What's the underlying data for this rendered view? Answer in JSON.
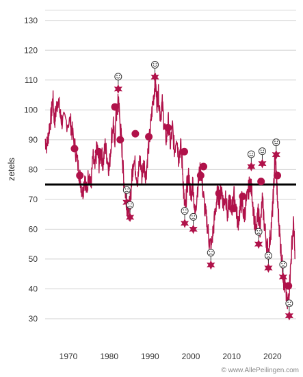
{
  "chart_data": {
    "type": "line",
    "ylabel": "zetels",
    "xlabel": "",
    "title": "",
    "xlim": [
      1964.3,
      2025.8
    ],
    "ylim": [
      27,
      135
    ],
    "yticks": [
      30,
      40,
      50,
      60,
      70,
      80,
      90,
      100,
      110,
      120,
      130
    ],
    "xticks": [
      1970,
      1980,
      1990,
      2000,
      2010,
      2020
    ],
    "grid": true,
    "reference_line": 75,
    "series_color": "#b0124a",
    "reference_color": "#000000",
    "poll_series": [
      [
        1964.3,
        90
      ],
      [
        1964.8,
        88
      ],
      [
        1965.3,
        94
      ],
      [
        1965.8,
        98
      ],
      [
        1966.2,
        104
      ],
      [
        1966.6,
        96
      ],
      [
        1967.0,
        100
      ],
      [
        1967.5,
        104
      ],
      [
        1968.0,
        98
      ],
      [
        1968.5,
        96
      ],
      [
        1969.5,
        96
      ],
      [
        1970.5,
        96
      ],
      [
        1971.0,
        92
      ],
      [
        1971.8,
        86
      ],
      [
        1972.5,
        80
      ],
      [
        1973.0,
        76
      ],
      [
        1973.5,
        72
      ],
      [
        1974.0,
        78
      ],
      [
        1974.5,
        72
      ],
      [
        1975.0,
        80
      ],
      [
        1975.5,
        74
      ],
      [
        1976.0,
        84
      ],
      [
        1976.5,
        80
      ],
      [
        1977.0,
        88
      ],
      [
        1977.5,
        82
      ],
      [
        1978.0,
        86
      ],
      [
        1978.5,
        82
      ],
      [
        1979.0,
        88
      ],
      [
        1979.5,
        84
      ],
      [
        1980.0,
        80
      ],
      [
        1980.5,
        90
      ],
      [
        1981.0,
        96
      ],
      [
        1981.3,
        88
      ],
      [
        1981.7,
        98
      ],
      [
        1982.0,
        100
      ],
      [
        1982.3,
        104
      ],
      [
        1982.6,
        96
      ],
      [
        1983.0,
        90
      ],
      [
        1983.3,
        82
      ],
      [
        1983.6,
        76
      ],
      [
        1984.0,
        72
      ],
      [
        1984.4,
        68
      ],
      [
        1984.8,
        66
      ],
      [
        1985.2,
        70
      ],
      [
        1985.6,
        78
      ],
      [
        1986.0,
        84
      ],
      [
        1986.5,
        80
      ],
      [
        1987.0,
        76
      ],
      [
        1987.5,
        84
      ],
      [
        1988.0,
        78
      ],
      [
        1988.5,
        82
      ],
      [
        1989.0,
        78
      ],
      [
        1989.5,
        86
      ],
      [
        1990.0,
        92
      ],
      [
        1990.5,
        100
      ],
      [
        1991.0,
        106
      ],
      [
        1991.3,
        110
      ],
      [
        1991.7,
        102
      ],
      [
        1992.0,
        106
      ],
      [
        1992.5,
        98
      ],
      [
        1993.0,
        102
      ],
      [
        1993.5,
        94
      ],
      [
        1994.0,
        90
      ],
      [
        1994.5,
        96
      ],
      [
        1995.0,
        88
      ],
      [
        1995.5,
        94
      ],
      [
        1996.0,
        86
      ],
      [
        1996.5,
        92
      ],
      [
        1997.0,
        84
      ],
      [
        1997.5,
        88
      ],
      [
        1998.0,
        80
      ],
      [
        1998.3,
        70
      ],
      [
        1998.7,
        66
      ],
      [
        1999.0,
        74
      ],
      [
        1999.5,
        78
      ],
      [
        2000.0,
        70
      ],
      [
        2000.5,
        76
      ],
      [
        2001.0,
        64
      ],
      [
        2001.5,
        72
      ],
      [
        2002.0,
        78
      ],
      [
        2002.5,
        80
      ],
      [
        2003.0,
        72
      ],
      [
        2003.5,
        66
      ],
      [
        2004.0,
        62
      ],
      [
        2004.5,
        56
      ],
      [
        2005.0,
        54
      ],
      [
        2005.5,
        60
      ],
      [
        2006.0,
        66
      ],
      [
        2006.5,
        72
      ],
      [
        2007.0,
        70
      ],
      [
        2007.5,
        74
      ],
      [
        2008.0,
        68
      ],
      [
        2008.5,
        72
      ],
      [
        2009.0,
        64
      ],
      [
        2009.5,
        70
      ],
      [
        2010.0,
        66
      ],
      [
        2010.5,
        72
      ],
      [
        2011.0,
        68
      ],
      [
        2011.5,
        62
      ],
      [
        2012.0,
        66
      ],
      [
        2012.5,
        70
      ],
      [
        2013.0,
        64
      ],
      [
        2013.5,
        68
      ],
      [
        2014.0,
        72
      ],
      [
        2014.5,
        76
      ],
      [
        2015.0,
        72
      ],
      [
        2015.5,
        64
      ],
      [
        2016.0,
        58
      ],
      [
        2016.5,
        66
      ],
      [
        2017.0,
        60
      ],
      [
        2017.5,
        70
      ],
      [
        2018.0,
        62
      ],
      [
        2018.5,
        56
      ],
      [
        2019.0,
        52
      ],
      [
        2019.5,
        58
      ],
      [
        2020.0,
        66
      ],
      [
        2020.3,
        74
      ],
      [
        2020.6,
        84
      ],
      [
        2020.9,
        80
      ],
      [
        2021.2,
        70
      ],
      [
        2021.6,
        62
      ],
      [
        2022.0,
        54
      ],
      [
        2022.4,
        48
      ],
      [
        2022.8,
        42
      ],
      [
        2023.2,
        40
      ],
      [
        2023.6,
        34
      ],
      [
        2024.0,
        38
      ],
      [
        2024.4,
        46
      ],
      [
        2024.8,
        56
      ],
      [
        2025.2,
        62
      ],
      [
        2025.5,
        50
      ]
    ],
    "elections": [
      {
        "x": 1971.5,
        "y": 87
      },
      {
        "x": 1972.8,
        "y": 78
      },
      {
        "x": 1977.4,
        "y": 86
      },
      {
        "x": 1981.4,
        "y": 101
      },
      {
        "x": 1982.7,
        "y": 90
      },
      {
        "x": 1986.4,
        "y": 92
      },
      {
        "x": 1989.7,
        "y": 91
      },
      {
        "x": 1994.4,
        "y": 94
      },
      {
        "x": 1998.4,
        "y": 86
      },
      {
        "x": 2002.4,
        "y": 78
      },
      {
        "x": 2003.1,
        "y": 81
      },
      {
        "x": 2006.9,
        "y": 72
      },
      {
        "x": 2010.5,
        "y": 67
      },
      {
        "x": 2012.7,
        "y": 71
      },
      {
        "x": 2017.2,
        "y": 76
      },
      {
        "x": 2021.2,
        "y": 78
      },
      {
        "x": 2023.9,
        "y": 41
      }
    ],
    "highs": [
      {
        "x": 1982.2,
        "y": 107
      },
      {
        "x": 1991.2,
        "y": 111
      },
      {
        "x": 2014.8,
        "y": 81
      },
      {
        "x": 2017.5,
        "y": 82
      },
      {
        "x": 2020.9,
        "y": 85
      }
    ],
    "lows": [
      {
        "x": 1984.3,
        "y": 69
      },
      {
        "x": 1985.1,
        "y": 64
      },
      {
        "x": 1998.5,
        "y": 62
      },
      {
        "x": 2000.6,
        "y": 60
      },
      {
        "x": 2004.9,
        "y": 48
      },
      {
        "x": 2016.6,
        "y": 55
      },
      {
        "x": 2019.0,
        "y": 47
      },
      {
        "x": 2022.6,
        "y": 44
      },
      {
        "x": 2024.1,
        "y": 31
      }
    ]
  },
  "footer": {
    "credit": "© www.AllePeilingen.com"
  }
}
